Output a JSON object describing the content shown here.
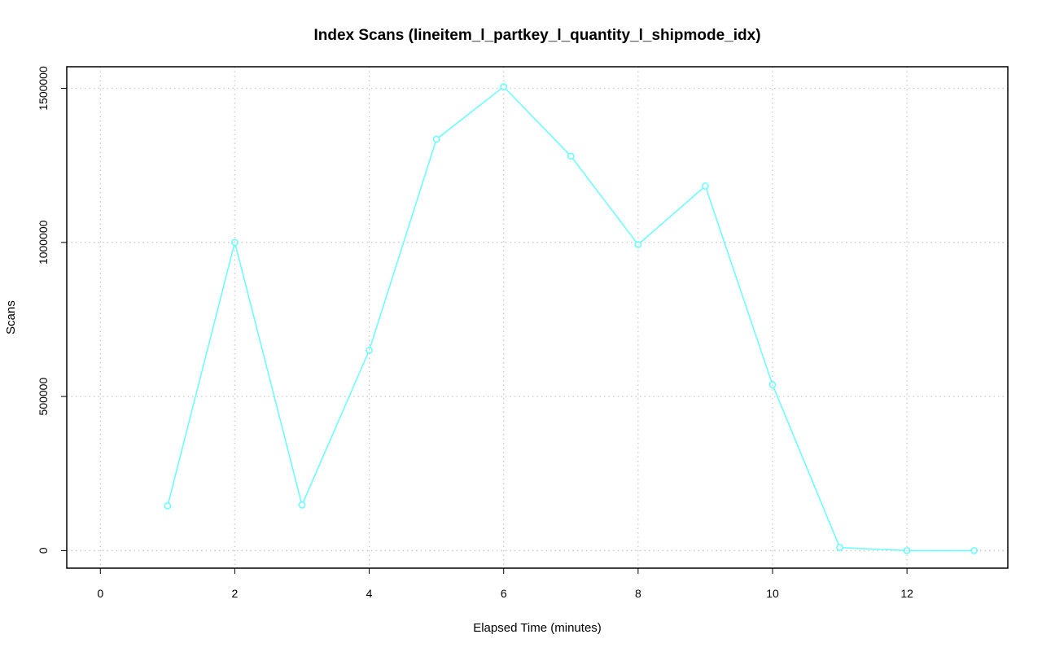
{
  "chart_data": {
    "type": "line",
    "title": "Index Scans (lineitem_l_partkey_l_quantity_l_shipmode_idx)",
    "xlabel": "Elapsed Time (minutes)",
    "ylabel": "Scans",
    "xlim": [
      -0.5,
      13.5
    ],
    "ylim": [
      -57000,
      1570000
    ],
    "x_ticks": [
      0,
      2,
      4,
      6,
      8,
      10,
      12
    ],
    "y_ticks": [
      0,
      500000,
      1000000,
      1500000
    ],
    "grid": true,
    "series": [
      {
        "color": "#66ffff",
        "x": [
          1,
          2,
          3,
          4,
          5,
          6,
          7,
          8,
          9,
          10,
          11,
          12,
          13
        ],
        "y": [
          145000,
          1000000,
          148000,
          650000,
          1335000,
          1505000,
          1280000,
          993000,
          1183000,
          538000,
          10000,
          0,
          0
        ]
      }
    ]
  }
}
